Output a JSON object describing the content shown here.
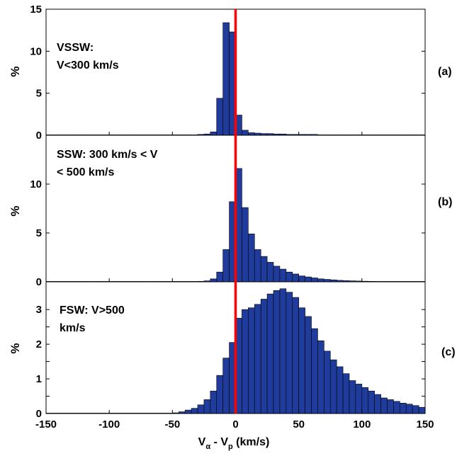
{
  "chart_data": [
    {
      "type": "bar",
      "panel_label": "(a)",
      "annotation": [
        "VSSW:",
        "V<300 km/s"
      ],
      "ylabel": "%",
      "ylim": [
        0,
        15
      ],
      "yticks": [
        0,
        5,
        10,
        15
      ],
      "xlim": [
        -150,
        150
      ],
      "bin_width": 5,
      "bins_x": [
        -150,
        -145,
        -140,
        -135,
        -130,
        -125,
        -120,
        -115,
        -110,
        -105,
        -100,
        -95,
        -90,
        -85,
        -80,
        -75,
        -70,
        -65,
        -60,
        -55,
        -50,
        -45,
        -40,
        -35,
        -30,
        -25,
        -20,
        -15,
        -10,
        -5,
        0,
        5,
        10,
        15,
        20,
        25,
        30,
        35,
        40,
        45,
        50,
        55,
        60,
        65,
        70,
        75,
        80,
        85,
        90,
        95,
        100,
        105,
        110,
        115,
        120,
        125,
        130,
        135,
        140,
        145
      ],
      "values": [
        0,
        0,
        0,
        0,
        0,
        0,
        0,
        0,
        0,
        0,
        0,
        0,
        0,
        0,
        0.05,
        0,
        0,
        0,
        0,
        0,
        0.03,
        0,
        0.03,
        0.05,
        0.1,
        0.15,
        0.4,
        4.4,
        13.4,
        12.3,
        2.4,
        0.6,
        0.3,
        0.25,
        0.2,
        0.2,
        0.15,
        0.15,
        0.1,
        0.1,
        0.1,
        0.1,
        0.1,
        0.05,
        0.05,
        0.05,
        0.05,
        0.05,
        0.03,
        0.03,
        0.03,
        0.03,
        0.03,
        0.03,
        0.03,
        0.03,
        0.03,
        0.03,
        0.03,
        0.03
      ]
    },
    {
      "type": "bar",
      "panel_label": "(b)",
      "annotation": [
        "SSW: 300 km/s < V",
        "< 500 km/s"
      ],
      "ylabel": "%",
      "ylim": [
        0,
        15
      ],
      "yticks": [
        0,
        5,
        10
      ],
      "xlim": [
        -150,
        150
      ],
      "bin_width": 5,
      "bins_x": [
        -150,
        -145,
        -140,
        -135,
        -130,
        -125,
        -120,
        -115,
        -110,
        -105,
        -100,
        -95,
        -90,
        -85,
        -80,
        -75,
        -70,
        -65,
        -60,
        -55,
        -50,
        -45,
        -40,
        -35,
        -30,
        -25,
        -20,
        -15,
        -10,
        -5,
        0,
        5,
        10,
        15,
        20,
        25,
        30,
        35,
        40,
        45,
        50,
        55,
        60,
        65,
        70,
        75,
        80,
        85,
        90,
        95,
        100,
        105,
        110,
        115,
        120,
        125,
        130,
        135,
        140,
        145
      ],
      "values": [
        0,
        0,
        0,
        0,
        0,
        0,
        0,
        0,
        0,
        0,
        0,
        0,
        0,
        0,
        0,
        0,
        0,
        0,
        0,
        0,
        0,
        0,
        0,
        0,
        0.05,
        0.1,
        0.3,
        1.0,
        3.3,
        8.2,
        11.6,
        7.6,
        4.9,
        3.3,
        2.6,
        2.0,
        1.6,
        1.3,
        1.0,
        0.8,
        0.6,
        0.5,
        0.4,
        0.3,
        0.25,
        0.2,
        0.15,
        0.12,
        0.1,
        0.08,
        0.06,
        0.05,
        0.04,
        0.03,
        0.03,
        0.02,
        0.02,
        0.02,
        0.02,
        0.02
      ]
    },
    {
      "type": "bar",
      "panel_label": "(c)",
      "annotation": [
        "FSW: V>500",
        "km/s"
      ],
      "ylabel": "%",
      "ylim": [
        0,
        3.8
      ],
      "yticks": [
        0,
        0.5,
        1,
        1.5,
        2,
        2.5,
        3
      ],
      "ytick_labels": [
        "0",
        "",
        "1",
        "",
        "2",
        "",
        "3"
      ],
      "xlim": [
        -150,
        150
      ],
      "xticks": [
        -150,
        -100,
        -50,
        0,
        50,
        100,
        150
      ],
      "xlabel": "Vα - Vp (km/s)",
      "bin_width": 5,
      "bins_x": [
        -150,
        -145,
        -140,
        -135,
        -130,
        -125,
        -120,
        -115,
        -110,
        -105,
        -100,
        -95,
        -90,
        -85,
        -80,
        -75,
        -70,
        -65,
        -60,
        -55,
        -50,
        -45,
        -40,
        -35,
        -30,
        -25,
        -20,
        -15,
        -10,
        -5,
        0,
        5,
        10,
        15,
        20,
        25,
        30,
        35,
        40,
        45,
        50,
        55,
        60,
        65,
        70,
        75,
        80,
        85,
        90,
        95,
        100,
        105,
        110,
        115,
        120,
        125,
        130,
        135,
        140,
        145
      ],
      "values": [
        0,
        0,
        0,
        0,
        0,
        0,
        0,
        0,
        0,
        0,
        0,
        0,
        0,
        0,
        0,
        0,
        0,
        0,
        0,
        0,
        0.02,
        0.05,
        0.1,
        0.15,
        0.25,
        0.4,
        0.65,
        1.1,
        1.6,
        2.05,
        2.75,
        3.0,
        3.05,
        3.15,
        3.3,
        3.45,
        3.55,
        3.6,
        3.5,
        3.35,
        3.05,
        2.8,
        2.45,
        2.1,
        1.8,
        1.55,
        1.35,
        1.15,
        0.95,
        0.85,
        0.75,
        0.65,
        0.55,
        0.45,
        0.4,
        0.35,
        0.3,
        0.27,
        0.23,
        0.18
      ]
    }
  ],
  "reference_line": {
    "x": 0,
    "color": "#ff0000"
  },
  "colors": {
    "bar_fill": "#1f3c9c",
    "bar_edge": "#000000"
  }
}
